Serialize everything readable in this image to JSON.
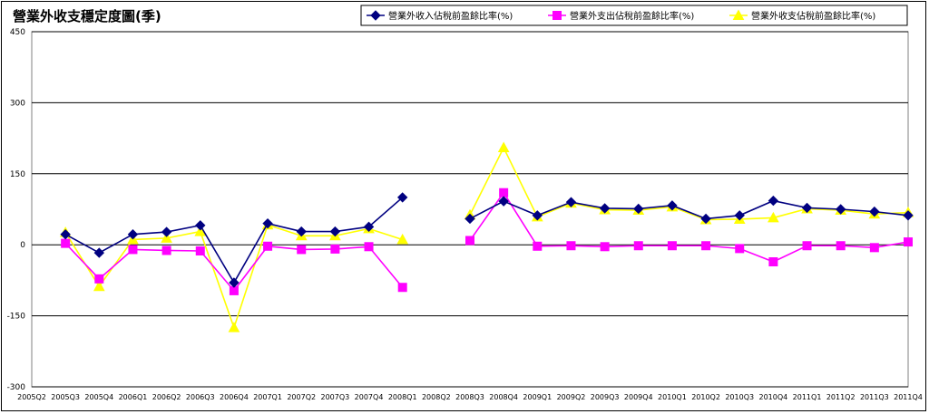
{
  "chart_data": {
    "type": "line",
    "title": "營業外收支穩定度圖(季)",
    "ylim": [
      -300,
      450
    ],
    "yticks": [
      -300,
      -150,
      0,
      150,
      300,
      450
    ],
    "grid": true,
    "legend_position": "top-right",
    "categories": [
      "2005Q2",
      "2005Q3",
      "2005Q4",
      "2006Q1",
      "2006Q2",
      "2006Q3",
      "2006Q4",
      "2007Q1",
      "2007Q2",
      "2007Q3",
      "2007Q4",
      "2008Q1",
      "2008Q2",
      "2008Q3",
      "2008Q4",
      "2009Q1",
      "2009Q2",
      "2009Q3",
      "2009Q4",
      "2010Q1",
      "2010Q2",
      "2010Q3",
      "2010Q4",
      "2011Q1",
      "2011Q2",
      "2011Q3",
      "2011Q4"
    ],
    "series": [
      {
        "name": "營業外收入佔稅前盈餘比率(%)",
        "color": "#000080",
        "marker": "diamond",
        "values": [
          null,
          22,
          -17,
          22,
          27,
          41,
          -80,
          45,
          28,
          28,
          38,
          100,
          null,
          55,
          92,
          62,
          90,
          77,
          76,
          83,
          55,
          62,
          93,
          78,
          75,
          70,
          62
        ]
      },
      {
        "name": "營業外支出佔稅前盈餘比率(%)",
        "color": "#ff00ff",
        "marker": "square",
        "values": [
          null,
          3,
          -72,
          -10,
          -12,
          -13,
          -97,
          -3,
          -10,
          -9,
          -4,
          -90,
          null,
          9,
          110,
          -3,
          -2,
          -4,
          -2,
          -2,
          -2,
          -8,
          -36,
          -2,
          -2,
          -6,
          6
        ]
      },
      {
        "name": "營業外收支佔稅前盈餘比率(%)",
        "color": "#ffff00",
        "marker": "triangle",
        "values": [
          null,
          26,
          -88,
          11,
          14,
          28,
          -175,
          42,
          19,
          19,
          34,
          11,
          null,
          63,
          205,
          59,
          88,
          74,
          73,
          80,
          53,
          54,
          57,
          76,
          73,
          65,
          68
        ]
      }
    ]
  }
}
